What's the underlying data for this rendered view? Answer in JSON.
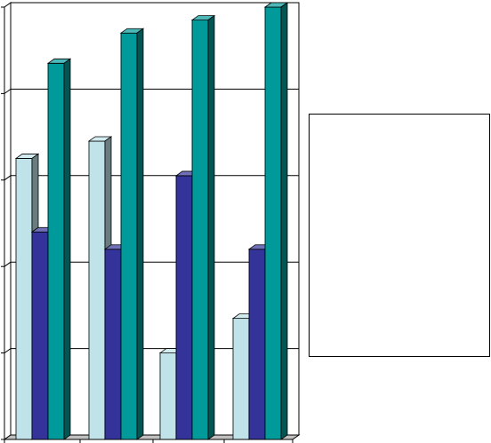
{
  "chart_data": {
    "type": "bar",
    "categories": [
      "",
      "",
      "",
      ""
    ],
    "series": [
      {
        "values": [
          65,
          69,
          20,
          28
        ],
        "color": "#BFE3E8"
      },
      {
        "values": [
          48,
          44,
          61,
          44
        ],
        "color": "#33339A"
      },
      {
        "values": [
          87,
          94,
          97,
          100
        ],
        "color": "#009A9A"
      }
    ],
    "ylim": [
      0,
      100
    ],
    "grid": true,
    "legend": "right",
    "title": "",
    "xlabel": "",
    "ylabel": "",
    "colors": {
      "wall": "#FFFFFF",
      "gridline": "#000000",
      "frame": "#000000"
    }
  }
}
